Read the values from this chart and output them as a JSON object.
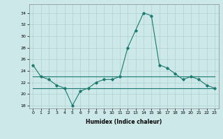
{
  "x": [
    0,
    1,
    2,
    3,
    4,
    5,
    6,
    7,
    8,
    9,
    10,
    11,
    12,
    13,
    14,
    15,
    16,
    17,
    18,
    19,
    20,
    21,
    22,
    23
  ],
  "y_main": [
    25,
    23,
    22.5,
    21.5,
    21,
    18,
    20.5,
    21,
    22,
    22.5,
    22.5,
    23,
    28,
    31,
    34,
    33.5,
    25,
    24.5,
    23.5,
    22.5,
    23,
    22.5,
    21.5,
    21
  ],
  "y_avg_high": [
    23,
    23,
    23,
    23,
    23,
    23,
    23,
    23,
    23,
    23,
    23,
    23,
    23,
    23,
    23,
    23,
    23,
    23,
    23,
    23,
    23,
    23,
    23,
    23
  ],
  "y_avg_low": [
    21,
    21,
    21,
    21,
    21,
    21,
    21,
    21,
    21,
    21,
    21,
    21,
    21,
    21,
    21,
    21,
    21,
    21,
    21,
    21,
    21,
    21,
    21,
    21
  ],
  "line_color": "#1a7a6e",
  "bg_color": "#cce8e8",
  "grid_color": "#b0d0d0",
  "xlabel": "Humidex (Indice chaleur)",
  "ylim": [
    17.5,
    35.5
  ],
  "xlim": [
    -0.5,
    23.5
  ],
  "yticks": [
    18,
    20,
    22,
    24,
    26,
    28,
    30,
    32,
    34
  ],
  "xticks": [
    0,
    1,
    2,
    3,
    4,
    5,
    6,
    7,
    8,
    9,
    10,
    11,
    12,
    13,
    14,
    15,
    16,
    17,
    18,
    19,
    20,
    21,
    22,
    23
  ],
  "marker": "D",
  "markersize": 1.8,
  "linewidth": 0.8,
  "tick_fontsize": 4.5,
  "xlabel_fontsize": 5.5
}
